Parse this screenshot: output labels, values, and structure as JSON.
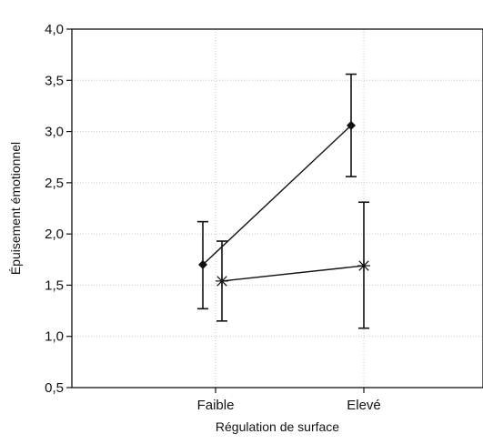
{
  "chart_data": {
    "type": "line",
    "xlabel": "Régulation de surface",
    "ylabel": "Épuisement émotionnel",
    "categories": [
      "Faible",
      "Elevé"
    ],
    "ylim": [
      0.5,
      4.0
    ],
    "yticks": [
      0.5,
      1.0,
      1.5,
      2.0,
      2.5,
      3.0,
      3.5,
      4.0
    ],
    "ytick_labels": [
      "0,5",
      "1,0",
      "1,5",
      "2,0",
      "2,5",
      "3,0",
      "3,5",
      "4,0"
    ],
    "grid": true,
    "series": [
      {
        "marker": "diamond",
        "values": [
          1.7,
          3.06
        ],
        "error_low": [
          1.27,
          2.56
        ],
        "error_high": [
          2.12,
          3.56
        ]
      },
      {
        "marker": "star",
        "values": [
          1.54,
          1.69
        ],
        "error_low": [
          1.15,
          1.08
        ],
        "error_high": [
          1.93,
          2.31
        ]
      }
    ],
    "colors": {
      "line": "#111111",
      "grid": "#c8c8c8"
    }
  }
}
